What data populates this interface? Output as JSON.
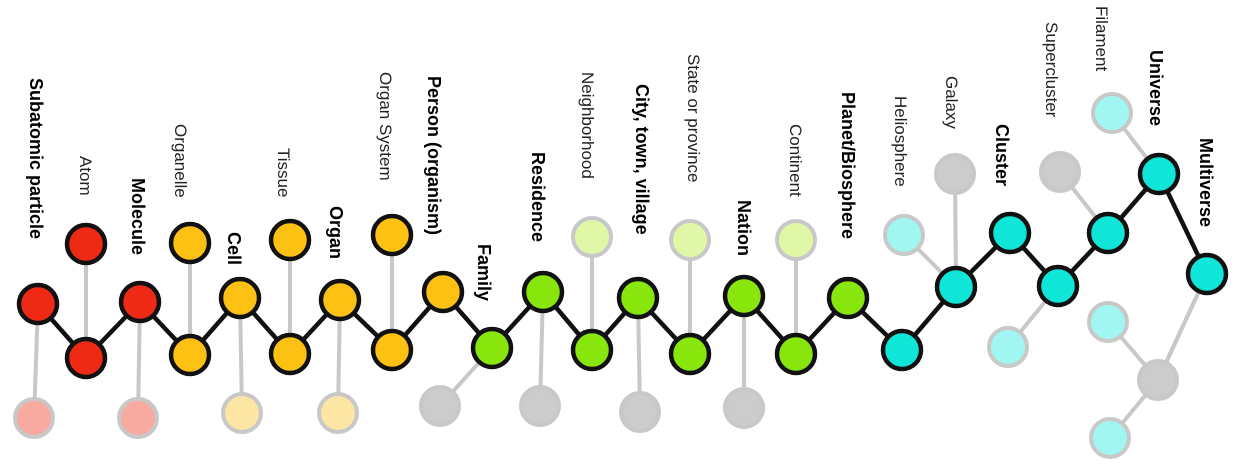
{
  "colors": {
    "red": "#ee2a14",
    "red_faded": "#f8aaa0",
    "orange": "#fcc112",
    "orange_faded": "#fde5a4",
    "green": "#89e60c",
    "green_faded": "#e0f7a8",
    "cyan": "#10e6d8",
    "cyan_faded": "#a2f6f2",
    "gray": "#cccccc",
    "line": "#111111",
    "line_faded": "#c8c8c8"
  },
  "labels": {
    "subatomic_particle": "Subatomic particle",
    "atom": "Atom",
    "molecule": "Molecule",
    "organelle": "Organelle",
    "cell": "Cell",
    "tissue": "Tissue",
    "organ": "Organ",
    "organ_system": "Organ System",
    "person": "Person (organism)",
    "family": "Family",
    "residence": "Residence",
    "neighborhood": "Neighborhood",
    "city": "City, town, village",
    "state": "State or province",
    "nation": "Nation",
    "continent": "Continent",
    "planet": "Planet/Biosphere",
    "heliosphere": "Heliosphere",
    "galaxy": "Galaxy",
    "cluster": "Cluster",
    "supercluster": "Supercluster",
    "filament": "Filament",
    "universe": "Universe",
    "multiverse": "Multiverse"
  }
}
